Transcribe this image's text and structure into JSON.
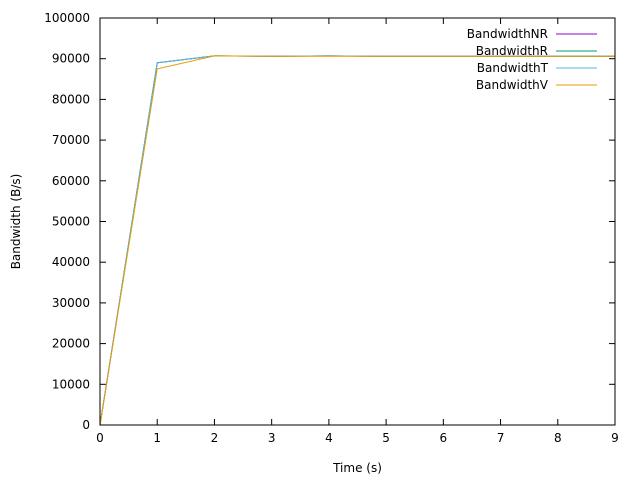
{
  "chart_data": {
    "type": "line",
    "xlabel": "Time (s)",
    "ylabel": "Bandwidth (B/s)",
    "xlim": [
      0,
      9
    ],
    "ylim": [
      0,
      100000
    ],
    "xticks": [
      "0",
      "1",
      "2",
      "3",
      "4",
      "5",
      "6",
      "7",
      "8",
      "9"
    ],
    "yticks": [
      "0",
      "10000",
      "20000",
      "30000",
      "40000",
      "50000",
      "60000",
      "70000",
      "80000",
      "90000",
      "100000"
    ],
    "grid": false,
    "legend_position": "top-right",
    "x": [
      0,
      1,
      2,
      3,
      4,
      5,
      6,
      7,
      8,
      9
    ],
    "series": [
      {
        "name": "BandwidthNR",
        "color": "#9400d3",
        "values": [
          0,
          89000,
          90700,
          90600,
          90700,
          90600,
          90600,
          90600,
          90600,
          90600
        ]
      },
      {
        "name": "BandwidthR",
        "color": "#009e73",
        "values": [
          0,
          89000,
          90700,
          90600,
          90700,
          90600,
          90600,
          90600,
          90600,
          90600
        ]
      },
      {
        "name": "BandwidthT",
        "color": "#56b4e9",
        "values": [
          0,
          89000,
          90700,
          90600,
          90700,
          90600,
          90600,
          90600,
          90600,
          90600
        ]
      },
      {
        "name": "BandwidthV",
        "color": "#e69f00",
        "values": [
          0,
          87500,
          90700,
          90600,
          90600,
          90600,
          90600,
          90600,
          90600,
          90600
        ]
      }
    ]
  }
}
